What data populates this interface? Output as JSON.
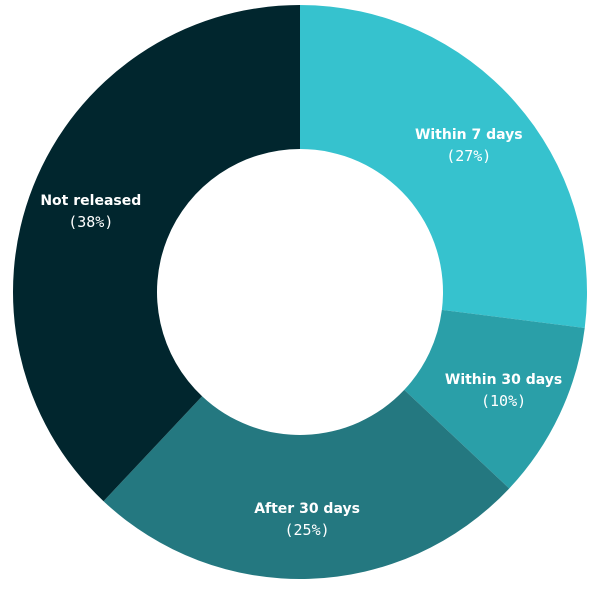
{
  "chart_data": {
    "type": "pie",
    "donut": true,
    "title": "",
    "legend": "none",
    "start_angle_deg": 0,
    "direction": "clockwise",
    "slices": [
      {
        "label": "Within 7 days",
        "value": 27,
        "pct_label": "(27%)",
        "color": "#36C2CE"
      },
      {
        "label": "Within 30 days",
        "value": 10,
        "pct_label": "(10%)",
        "color": "#2A9FA8"
      },
      {
        "label": "After 30 days",
        "value": 25,
        "pct_label": "(25%)",
        "color": "#247880"
      },
      {
        "label": "Not released",
        "value": 38,
        "pct_label": "(38%)",
        "color": "#01262E"
      }
    ]
  }
}
